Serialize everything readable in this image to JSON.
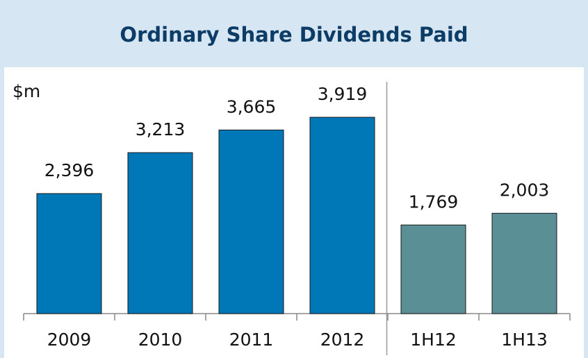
{
  "chart_data": {
    "type": "bar",
    "title": "Ordinary Share Dividends Paid",
    "y_label": "$m",
    "categories": [
      "2009",
      "2010",
      "2011",
      "2012",
      "1H12",
      "1H13"
    ],
    "values": [
      2396,
      3213,
      3665,
      3919,
      1769,
      2003
    ],
    "value_labels": [
      "2,396",
      "3,213",
      "3,665",
      "3,919",
      "1,769",
      "2,003"
    ],
    "colors": [
      "#0077b6",
      "#0077b6",
      "#0077b6",
      "#0077b6",
      "#5a8f96",
      "#5a8f96"
    ]
  }
}
